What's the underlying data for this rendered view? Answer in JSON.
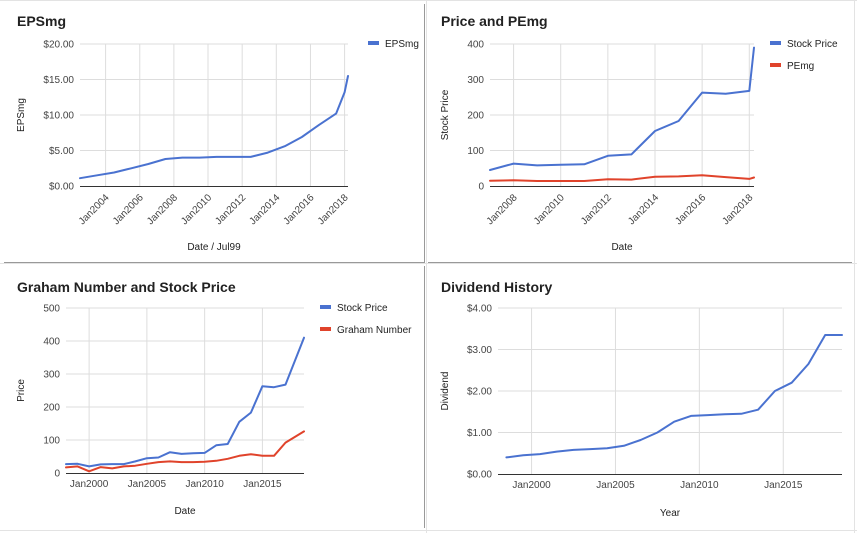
{
  "colors": {
    "blue": "#4a72d0",
    "red": "#e0432b"
  },
  "chart_data": [
    {
      "type": "line",
      "title": "EPSmg",
      "xlabel": "Date / Jul99",
      "ylabel": "EPSmg",
      "ylim": [
        0,
        20
      ],
      "xlim": [
        2002.5,
        2018.2
      ],
      "y_ticks": [
        "$0.00",
        "$5.00",
        "$10.00",
        "$15.00",
        "$20.00"
      ],
      "x_ticks": [
        "Jan2004",
        "Jan2006",
        "Jan2008",
        "Jan2010",
        "Jan2012",
        "Jan2014",
        "Jan2016",
        "Jan2018"
      ],
      "x_tick_values": [
        2004,
        2006,
        2008,
        2010,
        2012,
        2014,
        2016,
        2018
      ],
      "legend_position": "top-right",
      "series": [
        {
          "name": "EPSmg",
          "color": "#4a72d0",
          "x": [
            2002.5,
            2003.5,
            2004.5,
            2005.5,
            2006.5,
            2007.5,
            2008.5,
            2009.5,
            2010.5,
            2011.5,
            2012.5,
            2013.5,
            2014.5,
            2015.5,
            2016.5,
            2017.5,
            2018.0,
            2018.2
          ],
          "y": [
            1.1,
            1.5,
            1.9,
            2.5,
            3.1,
            3.8,
            4.0,
            4.0,
            4.1,
            4.1,
            4.1,
            4.7,
            5.6,
            6.9,
            8.6,
            10.2,
            13.2,
            15.5
          ]
        }
      ]
    },
    {
      "type": "line",
      "title": "Price and PEmg",
      "xlabel": "Date",
      "ylabel": "Stock Price",
      "ylim": [
        0,
        400
      ],
      "xlim": [
        2007.0,
        2018.2
      ],
      "y_ticks": [
        "0",
        "100",
        "200",
        "300",
        "400"
      ],
      "x_ticks": [
        "Jan2008",
        "Jan2010",
        "Jan2012",
        "Jan2014",
        "Jan2016",
        "Jan2018"
      ],
      "x_tick_values": [
        2008,
        2010,
        2012,
        2014,
        2016,
        2018
      ],
      "legend_position": "top-right",
      "series": [
        {
          "name": "Stock Price",
          "color": "#4a72d0",
          "x": [
            2007.0,
            2008.0,
            2009.0,
            2010.0,
            2011.0,
            2012.0,
            2013.0,
            2014.0,
            2015.0,
            2016.0,
            2017.0,
            2018.0,
            2018.2
          ],
          "y": [
            45,
            63,
            58,
            60,
            61,
            85,
            89,
            155,
            183,
            263,
            260,
            268,
            390
          ]
        },
        {
          "name": "PEmg",
          "color": "#e0432b",
          "x": [
            2007.0,
            2008.0,
            2009.0,
            2010.0,
            2011.0,
            2012.0,
            2013.0,
            2014.0,
            2015.0,
            2016.0,
            2017.0,
            2018.0,
            2018.2
          ],
          "y": [
            15,
            16,
            14,
            14,
            14,
            19,
            18,
            26,
            27,
            30,
            25,
            20,
            24
          ]
        }
      ]
    },
    {
      "type": "line",
      "title": "Graham Number and Stock Price",
      "xlabel": "Date",
      "ylabel": "Price",
      "ylim": [
        0,
        500
      ],
      "xlim": [
        1998.0,
        2018.6
      ],
      "y_ticks": [
        "0",
        "100",
        "200",
        "300",
        "400",
        "500"
      ],
      "x_ticks": [
        "Jan2000",
        "Jan2005",
        "Jan2010",
        "Jan2015"
      ],
      "x_tick_values": [
        2000,
        2005,
        2010,
        2015
      ],
      "legend_position": "top-right",
      "series": [
        {
          "name": "Stock Price",
          "color": "#4a72d0",
          "x": [
            1998.0,
            1999.0,
            2000.0,
            2001.0,
            2002.0,
            2003.0,
            2004.0,
            2005.0,
            2006.0,
            2007.0,
            2008.0,
            2009.0,
            2010.0,
            2011.0,
            2012.0,
            2013.0,
            2014.0,
            2015.0,
            2016.0,
            2017.0,
            2018.6
          ],
          "y": [
            27,
            28,
            20,
            26,
            27,
            27,
            35,
            45,
            47,
            63,
            58,
            60,
            61,
            84,
            88,
            155,
            183,
            263,
            260,
            268,
            410
          ]
        },
        {
          "name": "Graham Number",
          "color": "#e0432b",
          "x": [
            1998.0,
            1999.0,
            2000.0,
            2001.0,
            2002.0,
            2003.0,
            2004.0,
            2005.0,
            2006.0,
            2007.0,
            2008.0,
            2009.0,
            2010.0,
            2011.0,
            2012.0,
            2013.0,
            2014.0,
            2015.0,
            2016.0,
            2017.0,
            2018.6
          ],
          "y": [
            17,
            20,
            5,
            18,
            14,
            20,
            22,
            28,
            33,
            35,
            33,
            33,
            34,
            37,
            43,
            52,
            57,
            52,
            52,
            92,
            126
          ]
        }
      ]
    },
    {
      "type": "line",
      "title": "Dividend History",
      "xlabel": "Year",
      "ylabel": "Dividend",
      "ylim": [
        0,
        4
      ],
      "xlim": [
        1998.0,
        2018.5
      ],
      "y_ticks": [
        "$0.00",
        "$1.00",
        "$2.00",
        "$3.00",
        "$4.00"
      ],
      "x_ticks": [
        "Jan2000",
        "Jan2005",
        "Jan2010",
        "Jan2015"
      ],
      "x_tick_values": [
        2000,
        2005,
        2010,
        2015
      ],
      "series": [
        {
          "name": "Dividend",
          "color": "#4a72d0",
          "x": [
            1998.5,
            1999.5,
            2000.5,
            2001.5,
            2002.5,
            2003.5,
            2004.5,
            2005.5,
            2006.5,
            2007.5,
            2008.5,
            2009.5,
            2010.5,
            2011.5,
            2012.5,
            2013.5,
            2014.5,
            2015.5,
            2016.5,
            2017.5,
            2018.5
          ],
          "y": [
            0.4,
            0.45,
            0.48,
            0.54,
            0.58,
            0.6,
            0.62,
            0.68,
            0.82,
            1.0,
            1.26,
            1.4,
            1.42,
            1.44,
            1.45,
            1.55,
            2.0,
            2.2,
            2.65,
            3.35,
            3.35
          ]
        }
      ]
    }
  ]
}
